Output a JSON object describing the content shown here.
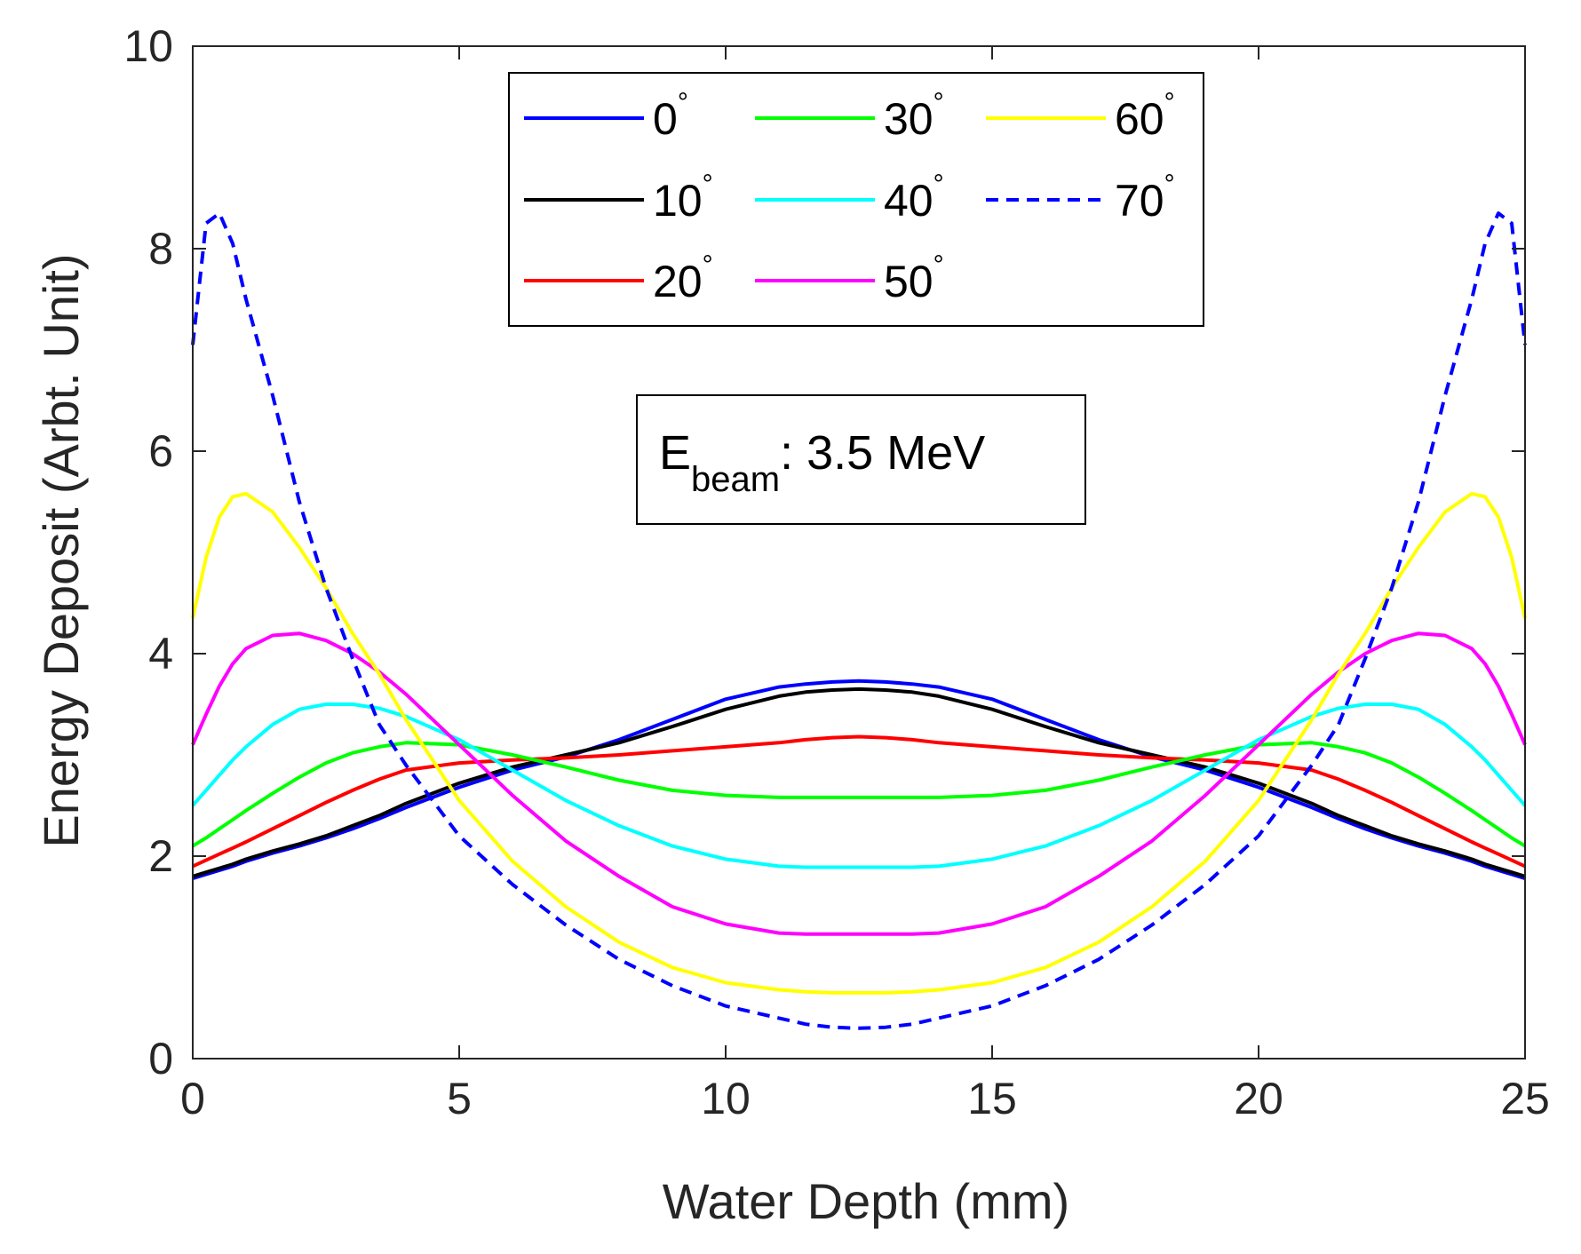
{
  "chart_data": {
    "type": "line",
    "title": "",
    "xlabel": "Water Depth (mm)",
    "ylabel": "Energy Deposit (Arbt. Unit)",
    "xlim": [
      0,
      25
    ],
    "ylim": [
      0,
      10
    ],
    "xticks": [
      0,
      5,
      10,
      15,
      20,
      25
    ],
    "yticks": [
      0,
      2,
      4,
      6,
      8,
      10
    ],
    "x": [
      0,
      0.25,
      0.5,
      0.75,
      1,
      1.5,
      2,
      2.5,
      3,
      3.5,
      4,
      5,
      6,
      7,
      8,
      9,
      10,
      11,
      11.5,
      12,
      12.5
    ],
    "degree_symbol": "°",
    "legend_position": "top-center",
    "series": [
      {
        "name": "0",
        "color": "#0000ff",
        "dash": "solid",
        "values": [
          1.78,
          1.82,
          1.86,
          1.9,
          1.95,
          2.03,
          2.1,
          2.18,
          2.27,
          2.37,
          2.48,
          2.68,
          2.85,
          2.98,
          3.15,
          3.35,
          3.55,
          3.67,
          3.7,
          3.72,
          3.73
        ]
      },
      {
        "name": "10",
        "color": "#000000",
        "dash": "solid",
        "values": [
          1.8,
          1.84,
          1.88,
          1.92,
          1.97,
          2.05,
          2.12,
          2.2,
          2.3,
          2.4,
          2.52,
          2.72,
          2.88,
          3.0,
          3.12,
          3.28,
          3.45,
          3.58,
          3.62,
          3.64,
          3.65
        ]
      },
      {
        "name": "20",
        "color": "#ff0000",
        "dash": "solid",
        "values": [
          1.9,
          1.96,
          2.02,
          2.08,
          2.14,
          2.27,
          2.4,
          2.53,
          2.65,
          2.76,
          2.85,
          2.92,
          2.95,
          2.97,
          3.0,
          3.04,
          3.08,
          3.12,
          3.15,
          3.17,
          3.18
        ]
      },
      {
        "name": "30",
        "color": "#00ff00",
        "dash": "solid",
        "values": [
          2.1,
          2.18,
          2.27,
          2.36,
          2.45,
          2.62,
          2.78,
          2.92,
          3.02,
          3.08,
          3.12,
          3.1,
          3.0,
          2.88,
          2.75,
          2.65,
          2.6,
          2.58,
          2.58,
          2.58,
          2.58
        ]
      },
      {
        "name": "40",
        "color": "#00ffff",
        "dash": "solid",
        "values": [
          2.5,
          2.65,
          2.8,
          2.95,
          3.08,
          3.3,
          3.45,
          3.5,
          3.5,
          3.46,
          3.38,
          3.15,
          2.85,
          2.55,
          2.3,
          2.1,
          1.97,
          1.9,
          1.89,
          1.89,
          1.89
        ]
      },
      {
        "name": "50",
        "color": "#ff00ff",
        "dash": "solid",
        "values": [
          3.1,
          3.4,
          3.68,
          3.9,
          4.05,
          4.18,
          4.2,
          4.13,
          4.0,
          3.82,
          3.6,
          3.1,
          2.6,
          2.15,
          1.8,
          1.5,
          1.33,
          1.24,
          1.23,
          1.23,
          1.23
        ]
      },
      {
        "name": "60",
        "color": "#ffff00",
        "dash": "solid",
        "values": [
          4.35,
          4.95,
          5.35,
          5.55,
          5.58,
          5.4,
          5.05,
          4.65,
          4.2,
          3.8,
          3.35,
          2.55,
          1.95,
          1.5,
          1.15,
          0.9,
          0.75,
          0.68,
          0.66,
          0.65,
          0.65
        ]
      },
      {
        "name": "70",
        "color": "#0000ff",
        "dash": "dashed",
        "values": [
          7.05,
          8.25,
          8.35,
          8.05,
          7.5,
          6.55,
          5.5,
          4.65,
          3.95,
          3.3,
          2.9,
          2.2,
          1.72,
          1.32,
          0.98,
          0.72,
          0.52,
          0.4,
          0.34,
          0.31,
          0.3
        ]
      }
    ],
    "symmetric_about_x": 12.5,
    "annotation": {
      "main": "E",
      "subscript": "beam",
      "rest": ": 3.5 MeV"
    }
  }
}
